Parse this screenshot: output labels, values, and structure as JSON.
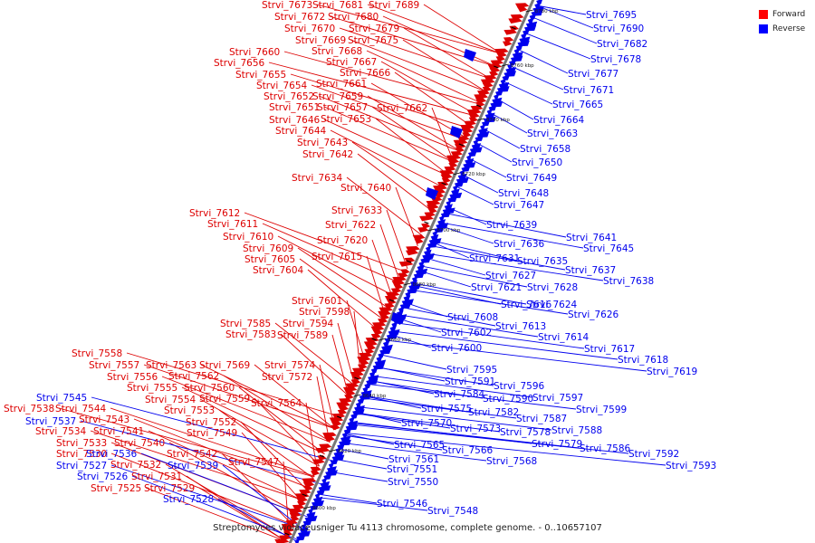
{
  "caption": "Streptomyces violaceusniger Tu 4113 chromosome, complete genome. - 0..10657107",
  "legend": [
    {
      "label": "Forward",
      "color": "#ff0000"
    },
    {
      "label": "Reverse",
      "color": "#0000ff"
    }
  ],
  "colors": {
    "forward": "#dd0000",
    "reverse": "#0000ee",
    "axis": "#777777"
  },
  "scale_ticks": [
    "8780 kbp",
    "8760 kbp",
    "8740 kbp",
    "8720 kbp",
    "8700 kbp",
    "8680 kbp",
    "8660 kbp",
    "8640 kbp",
    "8620 kbp",
    "8600 kbp"
  ],
  "forward_labels": [
    "Strvi_7673",
    "Strvi_7681",
    "Strvi_7689",
    "Strvi_7672",
    "Strvi_7680",
    "Strvi_7670",
    "Strvi_7679",
    "Strvi_7669",
    "Strvi_7675",
    "Strvi_7668",
    "Strvi_7660",
    "Strvi_7667",
    "Strvi_7656",
    "Strvi_7666",
    "Strvi_7655",
    "Strvi_7661",
    "Strvi_7654",
    "Strvi_7659",
    "Strvi_7652",
    "Strvi_7651",
    "Strvi_7657",
    "Strvi_7662",
    "Strvi_7646",
    "Strvi_7653",
    "Strvi_7644",
    "Strvi_7643",
    "Strvi_7642",
    "Strvi_7634",
    "Strvi_7640",
    "Strvi_7633",
    "Strvi_7612",
    "Strvi_7622",
    "Strvi_7611",
    "Strvi_7610",
    "Strvi_7620",
    "Strvi_7609",
    "Strvi_7615",
    "Strvi_7605",
    "Strvi_7604",
    "Strvi_7601",
    "Strvi_7598",
    "Strvi_7585",
    "Strvi_7594",
    "Strvi_7583",
    "Strvi_7589",
    "Strvi_7558",
    "Strvi_7557",
    "Strvi_7563",
    "Strvi_7569",
    "Strvi_7574",
    "Strvi_7556",
    "Strvi_7562",
    "Strvi_7572",
    "Strvi_7555",
    "Strvi_7560",
    "Strvi_7554",
    "Strvi_7559",
    "Strvi_7564",
    "Strvi_7544",
    "Strvi_7553",
    "Strvi_7538",
    "Strvi_7543",
    "Strvi_7552",
    "Strvi_7534",
    "Strvi_7541",
    "Strvi_7549",
    "Strvi_7533",
    "Strvi_7540",
    "Strvi_7530",
    "Strvi_7542",
    "Strvi_7547",
    "Strvi_7532",
    "Strvi_7531",
    "Strvi_7525",
    "Strvi_7529"
  ],
  "reverse_labels": [
    "Strvi_7695",
    "Strvi_7690",
    "Strvi_7682",
    "Strvi_7678",
    "Strvi_7677",
    "Strvi_7671",
    "Strvi_7665",
    "Strvi_7664",
    "Strvi_7663",
    "Strvi_7658",
    "Strvi_7650",
    "Strvi_7649",
    "Strvi_7648",
    "Strvi_7647",
    "Strvi_7639",
    "Strvi_7641",
    "Strvi_7636",
    "Strvi_7645",
    "Strvi_7631",
    "Strvi_7635",
    "Strvi_7637",
    "Strvi_7627",
    "Strvi_7621",
    "Strvi_7628",
    "Strvi_7638",
    "Strvi_7616",
    "Strvi_7624",
    "Strvi_7608",
    "Strvi_7626",
    "Strvi_7613",
    "Strvi_7602",
    "Strvi_7614",
    "Strvi_7617",
    "Strvi_7600",
    "Strvi_7618",
    "Strvi_7619",
    "Strvi_7595",
    "Strvi_7591",
    "Strvi_7596",
    "Strvi_7584",
    "Strvi_7590",
    "Strvi_7597",
    "Strvi_7575",
    "Strvi_7582",
    "Strvi_7599",
    "Strvi_7570",
    "Strvi_7587",
    "Strvi_7573",
    "Strvi_7588",
    "Strvi_7578",
    "Strvi_7579",
    "Strvi_7586",
    "Strvi_7592",
    "Strvi_7565",
    "Strvi_7566",
    "Strvi_7561",
    "Strvi_7568",
    "Strvi_7593",
    "Strvi_7551",
    "Strvi_7550",
    "Strvi_7546",
    "Strvi_7548",
    "Strvi_7545",
    "Strvi_7537",
    "Strvi_7536",
    "Strvi_7527",
    "Strvi_7539",
    "Strvi_7526",
    "Strvi_7528"
  ]
}
